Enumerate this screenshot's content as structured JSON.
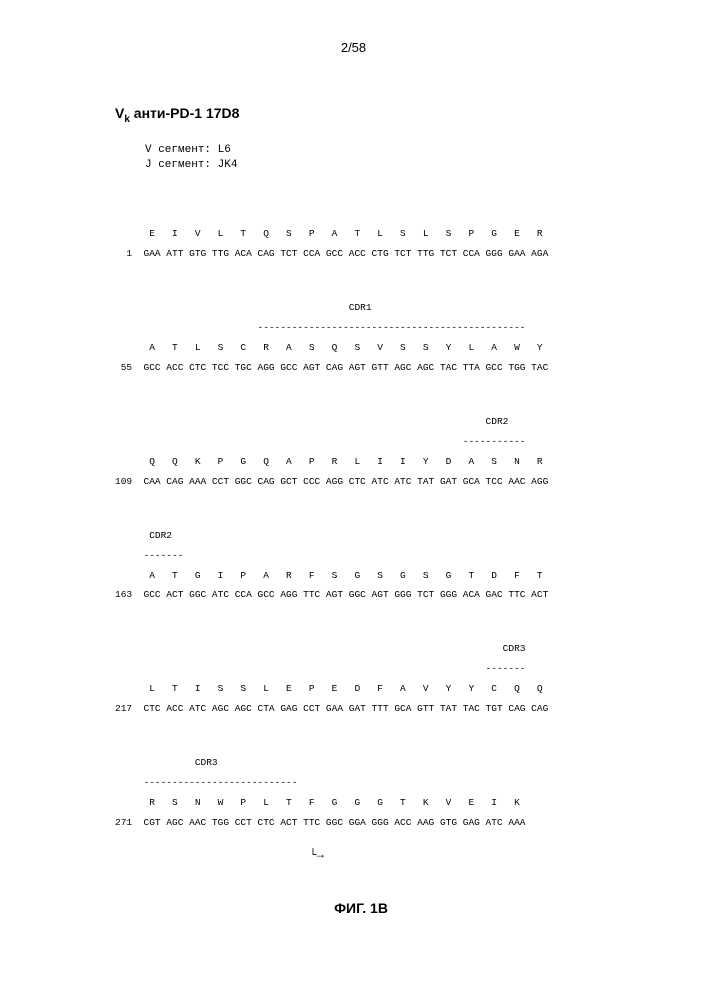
{
  "page_number": "2/58",
  "title_prefix": "V",
  "title_sub": "k",
  "title_rest": " анти-PD-1 17D8",
  "segments": {
    "label_v": "V сегмент:",
    "value_v": "L6",
    "label_j": "J сегмент:",
    "value_j": "JK4"
  },
  "figure_label": "ФИГ. 1B",
  "seq_rows": [
    {
      "cdr_label": "",
      "cdr_dashes": "",
      "aa": "      E   I   V   L   T   Q   S   P   A   T   L   S   L   S   P   G   E   R",
      "nt": "  1  GAA ATT GTG TTG ACA CAG TCT CCA GCC ACC CTG TCT TTG TCT CCA GGG GAA AGA"
    },
    {
      "cdr_label": "                                         CDR1",
      "cdr_dashes": "                         -----------------------------------------------",
      "aa": "      A   T   L   S   C   R   A   S   Q   S   V   S   S   Y   L   A   W   Y",
      "nt": " 55  GCC ACC CTC TCC TGC AGG GCC AGT CAG AGT GTT AGC AGC TAC TTA GCC TGG TAC"
    },
    {
      "cdr_label": "                                                                 CDR2",
      "cdr_dashes": "                                                             -----------",
      "aa": "      Q   Q   K   P   G   Q   A   P   R   L   I   I   Y   D   A   S   N   R",
      "nt": "109  CAA CAG AAA CCT GGC CAG GCT CCC AGG CTC ATC ATC TAT GAT GCA TCC AAC AGG"
    },
    {
      "cdr_label": "      CDR2",
      "cdr_dashes": "     -------",
      "aa": "      A   T   G   I   P   A   R   F   S   G   S   G   S   G   T   D   F   T",
      "nt": "163  GCC ACT GGC ATC CCA GCC AGG TTC AGT GGC AGT GGG TCT GGG ACA GAC TTC ACT"
    },
    {
      "cdr_label": "                                                                    CDR3",
      "cdr_dashes": "                                                                 -------",
      "aa": "      L   T   I   S   S   L   E   P   E   D   F   A   V   Y   Y   C   Q   Q",
      "nt": "217  CTC ACC ATC AGC AGC CTA GAG CCT GAA GAT TTT GCA GTT TAT TAC TGT CAG CAG"
    },
    {
      "cdr_label": "              CDR3",
      "cdr_dashes": "     ---------------------------",
      "aa": "      R   S   N   W   P   L   T   F   G   G   G   T   K   V   E   I   K",
      "nt": "271  CGT AGC AAC TGG CCT CTC ACT TTC GGC GGA GGG ACC AAG GTG GAG ATC AAA"
    }
  ],
  "arrow_line": "                           └→"
}
